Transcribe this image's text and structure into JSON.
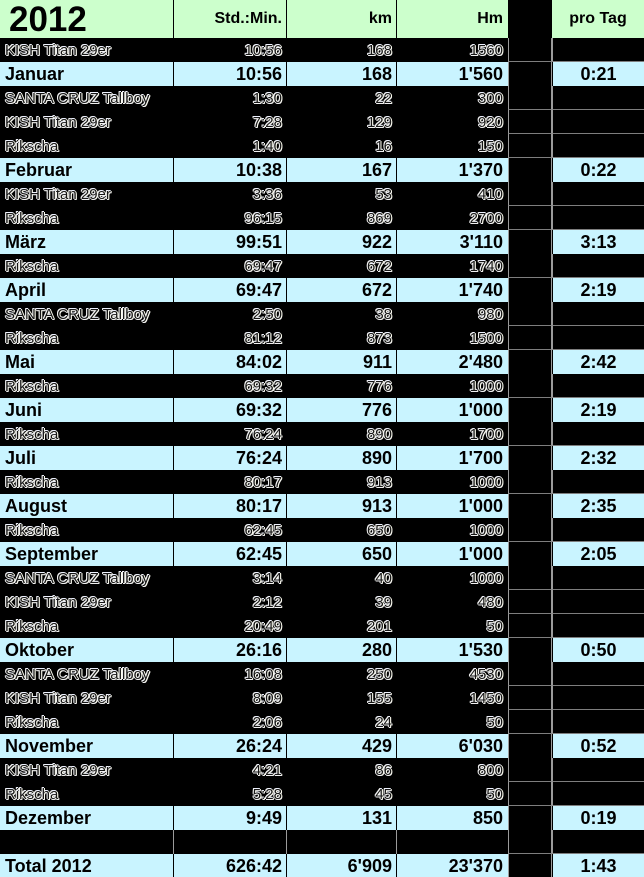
{
  "header": {
    "year": "2012",
    "time": "Std.:Min.",
    "km": "km",
    "hm": "Hm",
    "pro_tag": "pro Tag"
  },
  "colors": {
    "header_bg": "#ccffcc",
    "summary_bg": "#c9f4ff",
    "detail_bg": "#000000",
    "grid_gray": "#9b9b9b"
  },
  "rows": [
    {
      "type": "detail",
      "label": "KISH Titan 29er",
      "time": "10:56",
      "km": "168",
      "hm": "1560",
      "pro_tag": ""
    },
    {
      "type": "month",
      "label": "Januar",
      "time": "10:56",
      "km": "168",
      "hm": "1'560",
      "pro_tag": "0:21"
    },
    {
      "type": "detail",
      "label": "SANTA CRUZ Tallboy",
      "time": "1:30",
      "km": "22",
      "hm": "300",
      "pro_tag": ""
    },
    {
      "type": "detail",
      "label": "KISH Titan 29er",
      "time": "7:28",
      "km": "129",
      "hm": "920",
      "pro_tag": ""
    },
    {
      "type": "detail",
      "label": "Rikscha",
      "time": "1:40",
      "km": "16",
      "hm": "150",
      "pro_tag": ""
    },
    {
      "type": "month",
      "label": "Februar",
      "time": "10:38",
      "km": "167",
      "hm": "1'370",
      "pro_tag": "0:22"
    },
    {
      "type": "detail",
      "label": "KISH Titan 29er",
      "time": "3:36",
      "km": "53",
      "hm": "410",
      "pro_tag": ""
    },
    {
      "type": "detail",
      "label": "Rikscha",
      "time": "96:15",
      "km": "869",
      "hm": "2700",
      "pro_tag": ""
    },
    {
      "type": "month",
      "label": "März",
      "time": "99:51",
      "km": "922",
      "hm": "3'110",
      "pro_tag": "3:13"
    },
    {
      "type": "detail",
      "label": "Rikscha",
      "time": "69:47",
      "km": "672",
      "hm": "1740",
      "pro_tag": ""
    },
    {
      "type": "month",
      "label": "April",
      "time": "69:47",
      "km": "672",
      "hm": "1'740",
      "pro_tag": "2:19"
    },
    {
      "type": "detail",
      "label": "SANTA CRUZ Tallboy",
      "time": "2:50",
      "km": "38",
      "hm": "980",
      "pro_tag": ""
    },
    {
      "type": "detail",
      "label": "Rikscha",
      "time": "81:12",
      "km": "873",
      "hm": "1500",
      "pro_tag": ""
    },
    {
      "type": "month",
      "label": "Mai",
      "time": "84:02",
      "km": "911",
      "hm": "2'480",
      "pro_tag": "2:42"
    },
    {
      "type": "detail",
      "label": "Rikscha",
      "time": "69:32",
      "km": "776",
      "hm": "1000",
      "pro_tag": ""
    },
    {
      "type": "month",
      "label": "Juni",
      "time": "69:32",
      "km": "776",
      "hm": "1'000",
      "pro_tag": "2:19"
    },
    {
      "type": "detail",
      "label": "Rikscha",
      "time": "76:24",
      "km": "890",
      "hm": "1700",
      "pro_tag": ""
    },
    {
      "type": "month",
      "label": "Juli",
      "time": "76:24",
      "km": "890",
      "hm": "1'700",
      "pro_tag": "2:32"
    },
    {
      "type": "detail",
      "label": "Rikscha",
      "time": "80:17",
      "km": "913",
      "hm": "1000",
      "pro_tag": ""
    },
    {
      "type": "month",
      "label": "August",
      "time": "80:17",
      "km": "913",
      "hm": "1'000",
      "pro_tag": "2:35"
    },
    {
      "type": "detail",
      "label": "Rikscha",
      "time": "62:45",
      "km": "650",
      "hm": "1000",
      "pro_tag": ""
    },
    {
      "type": "month",
      "label": "September",
      "time": "62:45",
      "km": "650",
      "hm": "1'000",
      "pro_tag": "2:05"
    },
    {
      "type": "detail",
      "label": "SANTA CRUZ Tallboy",
      "time": "3:14",
      "km": "40",
      "hm": "1000",
      "pro_tag": ""
    },
    {
      "type": "detail",
      "label": "KISH Titan 29er",
      "time": "2:12",
      "km": "39",
      "hm": "480",
      "pro_tag": ""
    },
    {
      "type": "detail",
      "label": "Rikscha",
      "time": "20:49",
      "km": "201",
      "hm": "50",
      "pro_tag": ""
    },
    {
      "type": "month",
      "label": "Oktober",
      "time": "26:16",
      "km": "280",
      "hm": "1'530",
      "pro_tag": "0:50"
    },
    {
      "type": "detail",
      "label": "SANTA CRUZ Tallboy",
      "time": "16:08",
      "km": "250",
      "hm": "4530",
      "pro_tag": ""
    },
    {
      "type": "detail",
      "label": "KISH Titan 29er",
      "time": "8:09",
      "km": "155",
      "hm": "1450",
      "pro_tag": ""
    },
    {
      "type": "detail",
      "label": "Rikscha",
      "time": "2:06",
      "km": "24",
      "hm": "50",
      "pro_tag": ""
    },
    {
      "type": "month",
      "label": "November",
      "time": "26:24",
      "km": "429",
      "hm": "6'030",
      "pro_tag": "0:52"
    },
    {
      "type": "detail",
      "label": "KISH Titan 29er",
      "time": "4:21",
      "km": "86",
      "hm": "800",
      "pro_tag": ""
    },
    {
      "type": "detail",
      "label": "Rikscha",
      "time": "5:28",
      "km": "45",
      "hm": "50",
      "pro_tag": ""
    },
    {
      "type": "month",
      "label": "Dezember",
      "time": "9:49",
      "km": "131",
      "hm": "850",
      "pro_tag": "0:19"
    },
    {
      "type": "empty",
      "label": "",
      "time": "",
      "km": "",
      "hm": "",
      "pro_tag": ""
    },
    {
      "type": "total",
      "label": "Total 2012",
      "time": "626:42",
      "km": "6'909",
      "hm": "23'370",
      "pro_tag": "1:43"
    }
  ]
}
